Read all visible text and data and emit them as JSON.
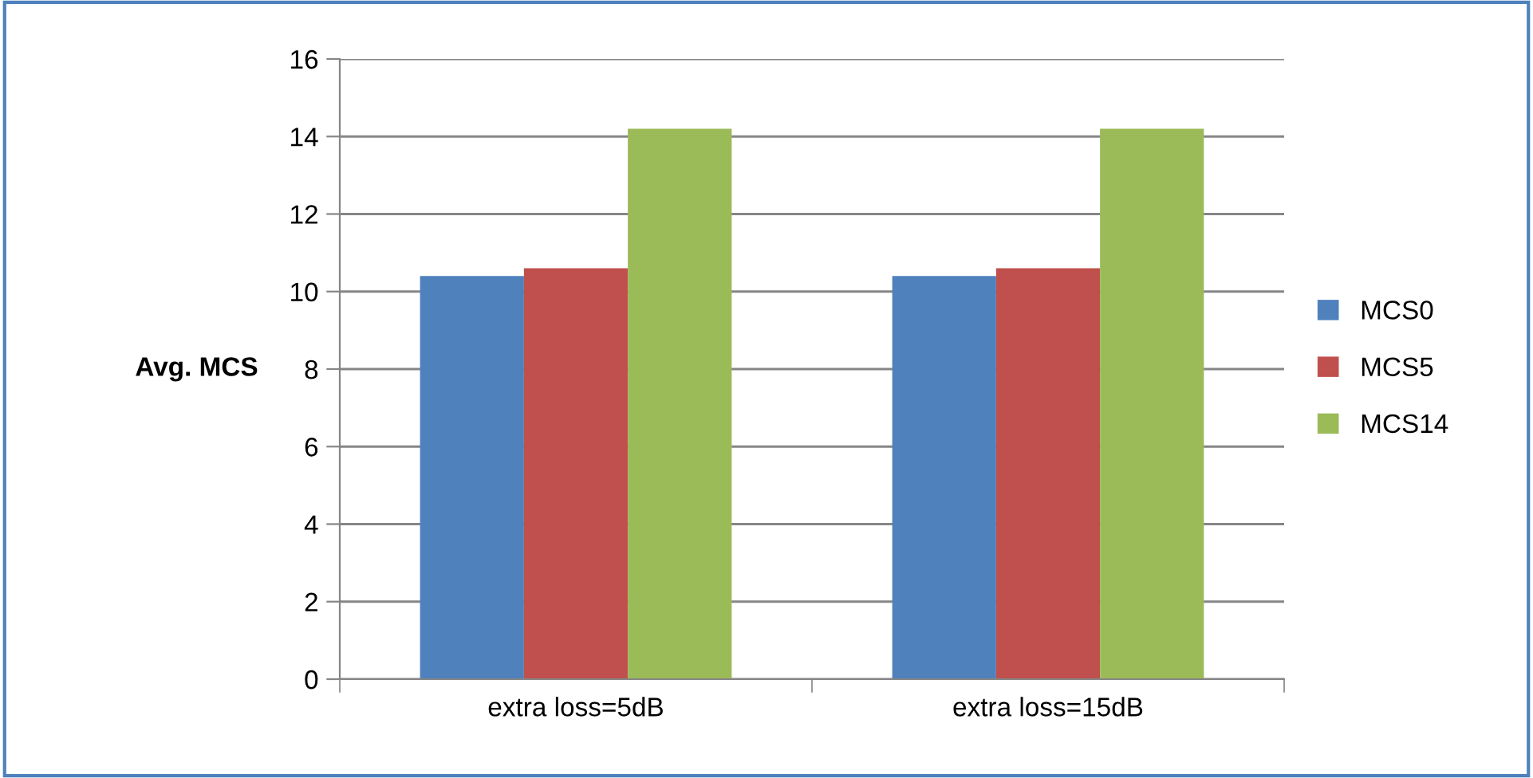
{
  "chart_data": {
    "type": "bar",
    "ylabel": "Avg. MCS",
    "categories": [
      "extra loss=5dB",
      "extra loss=15dB"
    ],
    "series": [
      {
        "name": "MCS0",
        "color": "#4f81bd",
        "values": [
          10.4,
          10.4
        ]
      },
      {
        "name": "MCS5",
        "color": "#c0504d",
        "values": [
          10.6,
          10.6
        ]
      },
      {
        "name": "MCS14",
        "color": "#9bbb59",
        "values": [
          14.2,
          14.2
        ]
      }
    ],
    "ylim": [
      0,
      16
    ],
    "yticks": [
      0,
      2,
      4,
      6,
      8,
      10,
      12,
      14,
      16
    ],
    "grid": "y",
    "legend": "right"
  }
}
